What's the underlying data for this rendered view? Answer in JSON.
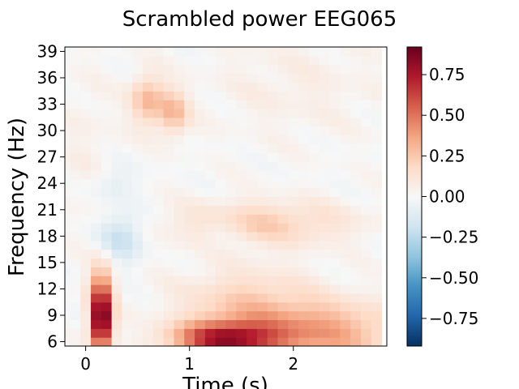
{
  "chart_data": {
    "type": "heatmap",
    "title": "Scrambled power EEG065",
    "xlabel": "Time (s)",
    "ylabel": "Frequency (Hz)",
    "xlim": [
      -0.2,
      2.9
    ],
    "ylim": [
      5.5,
      39.5
    ],
    "x_ticks": [
      0,
      1,
      2
    ],
    "y_ticks": [
      6,
      9,
      12,
      15,
      18,
      21,
      24,
      27,
      30,
      33,
      36,
      39
    ],
    "colorbar": {
      "colormap": "RdBu_r",
      "vmin": -0.92,
      "vmax": 0.92,
      "ticks": [
        -0.75,
        -0.5,
        -0.25,
        0.0,
        0.25,
        0.5,
        0.75
      ],
      "tick_labels": [
        "−0.75",
        "−0.50",
        "−0.25",
        "0.00",
        "0.25",
        "0.50",
        "0.75"
      ]
    },
    "time_bins": [
      -0.2,
      -0.1,
      0.0,
      0.1,
      0.2,
      0.3,
      0.4,
      0.5,
      0.6,
      0.7,
      0.8,
      0.9,
      1.0,
      1.1,
      1.2,
      1.3,
      1.4,
      1.5,
      1.6,
      1.7,
      1.8,
      1.9,
      2.0,
      2.1,
      2.2,
      2.3,
      2.4,
      2.5,
      2.6,
      2.7,
      2.8
    ],
    "frequency_bins": [
      6,
      7,
      8,
      9,
      10,
      11,
      12,
      13,
      14,
      15,
      16,
      17,
      18,
      19,
      20,
      21,
      22,
      23,
      24,
      25,
      26,
      27,
      28,
      29,
      30,
      31,
      32,
      33,
      34,
      35,
      36,
      37,
      38,
      39
    ],
    "features": [
      {
        "t": 0.15,
        "f": 8.0,
        "st": 0.07,
        "sf": 2.2,
        "v": 0.85
      },
      {
        "t": 0.15,
        "f": 11.5,
        "st": 0.08,
        "sf": 2.5,
        "v": 0.45
      },
      {
        "t": 1.35,
        "f": 6.3,
        "st": 0.35,
        "sf": 1.4,
        "v": 0.7
      },
      {
        "t": 2.3,
        "f": 7.0,
        "st": 0.5,
        "sf": 2.5,
        "v": 0.35
      },
      {
        "t": 1.55,
        "f": 10.0,
        "st": 0.45,
        "sf": 3.0,
        "v": 0.22
      },
      {
        "t": 1.7,
        "f": 19.5,
        "st": 0.6,
        "sf": 1.8,
        "v": 0.22
      },
      {
        "t": 0.6,
        "f": 33.5,
        "st": 0.12,
        "sf": 2.0,
        "v": 0.3
      },
      {
        "t": 0.85,
        "f": 32.0,
        "st": 0.1,
        "sf": 1.8,
        "v": 0.28
      },
      {
        "t": 0.35,
        "f": 18.0,
        "st": 0.15,
        "sf": 2.0,
        "v": -0.22
      },
      {
        "t": 0.25,
        "f": 24.0,
        "st": 0.15,
        "sf": 1.5,
        "v": -0.1
      },
      {
        "t": 1.3,
        "f": 18.5,
        "st": 0.15,
        "sf": 1.5,
        "v": -0.08
      },
      {
        "t": 0.0,
        "f": 28.0,
        "st": 0.2,
        "sf": 6.0,
        "v": 0.05
      },
      {
        "t": 2.0,
        "f": 35.0,
        "st": 0.6,
        "sf": 4.0,
        "v": 0.06
      }
    ]
  }
}
